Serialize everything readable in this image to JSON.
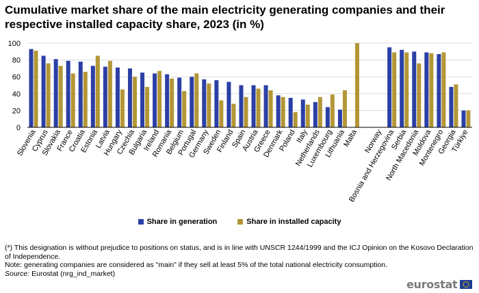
{
  "title": "Cumulative market share of the main electricity generating companies and their respective installed capacity share, 2023 (in %)",
  "colors": {
    "generation": "#2b3fa5",
    "capacity": "#b39636",
    "grid": "#dcdcdc",
    "axis": "#000000"
  },
  "chart_data": {
    "type": "bar",
    "title": "Cumulative market share of the main electricity generating companies and their respective installed capacity share, 2023 (in %)",
    "xlabel": "",
    "ylabel": "",
    "ylim": [
      0,
      100
    ],
    "yticks": [
      0,
      20,
      40,
      60,
      80,
      100
    ],
    "grid": true,
    "legend_position": "bottom",
    "categories": [
      "Slovenia",
      "Cyprus",
      "Slovakia",
      "France",
      "Croatia",
      "Estonia",
      "Latvia",
      "Hungary",
      "Czechia",
      "Bulgaria",
      "Ireland",
      "Romania",
      "Belgium",
      "Portugal",
      "Germany",
      "Sweden",
      "Finland",
      "Spain",
      "Austria",
      "Greece",
      "Denmark",
      "Poland",
      "Italy",
      "Netherlands",
      "Luxembourg",
      "Lithuania",
      "Malta",
      "",
      "Norway",
      "Bosnia and Herzegovina",
      "Serbia",
      "North Macedonia",
      "Moldova",
      "Montenegro",
      "Georgia",
      "Türkiye"
    ],
    "series": [
      {
        "name": "Share in generation",
        "values": [
          93,
          85,
          81,
          79,
          78,
          73,
          72,
          71,
          70,
          65,
          64,
          63,
          59,
          60,
          57,
          56,
          54,
          50,
          50,
          50,
          38,
          35,
          33,
          30,
          24,
          21,
          null,
          null,
          null,
          95,
          92,
          90,
          89,
          87,
          48,
          20
        ]
      },
      {
        "name": "Share in installed capacity",
        "values": [
          91,
          76,
          73,
          64,
          66,
          85,
          79,
          45,
          60,
          48,
          67,
          58,
          43,
          64,
          52,
          32,
          28,
          36,
          46,
          44,
          36,
          18,
          27,
          36,
          39,
          44,
          100,
          null,
          null,
          89,
          89,
          76,
          88,
          89,
          51,
          20
        ]
      }
    ]
  },
  "legend": {
    "generation_label": "Share in generation",
    "capacity_label": "Share in installed capacity"
  },
  "notes": {
    "line1": "(*) This designation is without prejudice to positions on status, and is in line with UNSCR 1244/1999 and the ICJ Opinion on the Kosovo Declaration of Independence.",
    "line2": "Note: generating companies are considered as \"main\" if they sell at least 5% of the total national electricity consumption.",
    "source_label": "Source:",
    "source_text": " Eurostat (nrg_ind_market)"
  },
  "logo": {
    "text": "eurostat"
  }
}
